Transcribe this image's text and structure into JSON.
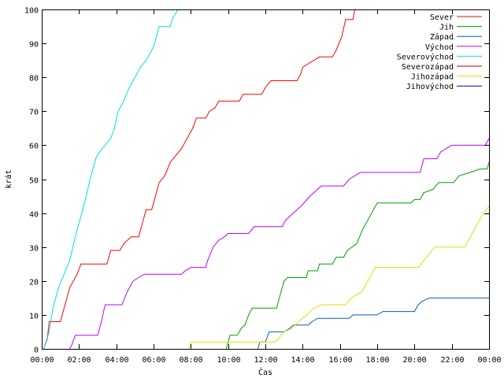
{
  "chart_data": {
    "type": "line",
    "xlabel": "Čas",
    "ylabel": "krát",
    "xlim": [
      0,
      24
    ],
    "ylim": [
      0,
      100
    ],
    "x_ticks": [
      {
        "value": 0,
        "label": "00:00"
      },
      {
        "value": 2,
        "label": "02:00"
      },
      {
        "value": 4,
        "label": "04:00"
      },
      {
        "value": 6,
        "label": "06:00"
      },
      {
        "value": 8,
        "label": "08:00"
      },
      {
        "value": 10,
        "label": "10:00"
      },
      {
        "value": 12,
        "label": "12:00"
      },
      {
        "value": 14,
        "label": "14:00"
      },
      {
        "value": 16,
        "label": "16:00"
      },
      {
        "value": 18,
        "label": "18:00"
      },
      {
        "value": 20,
        "label": "20:00"
      },
      {
        "value": 22,
        "label": "22:00"
      },
      {
        "value": 24,
        "label": "00:00"
      }
    ],
    "y_ticks": [
      {
        "value": 0,
        "label": "0"
      },
      {
        "value": 10,
        "label": "10"
      },
      {
        "value": 20,
        "label": "20"
      },
      {
        "value": 30,
        "label": "30"
      },
      {
        "value": 40,
        "label": "40"
      },
      {
        "value": 50,
        "label": "50"
      },
      {
        "value": 60,
        "label": "60"
      },
      {
        "value": 70,
        "label": "70"
      },
      {
        "value": 80,
        "label": "80"
      },
      {
        "value": 90,
        "label": "90"
      },
      {
        "value": 100,
        "label": "100"
      }
    ],
    "grid": false,
    "legend_position": "top-right",
    "series": [
      {
        "name": "Sever",
        "color": "#ff0000",
        "points": [
          [
            0.1,
            0
          ],
          [
            0.3,
            3
          ],
          [
            0.4,
            8
          ],
          [
            1.0,
            8
          ],
          [
            1.1,
            10
          ],
          [
            1.3,
            14
          ],
          [
            1.5,
            18
          ],
          [
            1.7,
            20
          ],
          [
            1.9,
            22
          ],
          [
            2.1,
            25
          ],
          [
            3.5,
            25
          ],
          [
            3.7,
            29
          ],
          [
            4.2,
            29
          ],
          [
            4.4,
            31
          ],
          [
            4.8,
            33
          ],
          [
            5.2,
            33
          ],
          [
            5.4,
            37
          ],
          [
            5.6,
            41
          ],
          [
            5.9,
            41
          ],
          [
            6.1,
            45
          ],
          [
            6.3,
            49
          ],
          [
            6.6,
            51
          ],
          [
            6.9,
            55
          ],
          [
            7.2,
            57
          ],
          [
            7.5,
            59
          ],
          [
            7.8,
            62
          ],
          [
            8.1,
            65
          ],
          [
            8.3,
            68
          ],
          [
            8.8,
            68
          ],
          [
            9.0,
            70
          ],
          [
            9.3,
            71
          ],
          [
            9.5,
            73
          ],
          [
            10.6,
            73
          ],
          [
            10.8,
            75
          ],
          [
            11.8,
            75
          ],
          [
            12.0,
            77
          ],
          [
            12.3,
            79
          ],
          [
            13.7,
            79
          ],
          [
            13.9,
            81
          ],
          [
            14.0,
            83
          ],
          [
            14.3,
            84
          ],
          [
            14.6,
            85
          ],
          [
            14.9,
            86
          ],
          [
            15.6,
            86
          ],
          [
            15.8,
            88
          ],
          [
            16.1,
            92
          ],
          [
            16.3,
            97
          ],
          [
            16.7,
            97
          ],
          [
            16.8,
            100
          ]
        ]
      },
      {
        "name": "Jih",
        "color": "#00a000",
        "points": [
          [
            9.9,
            0
          ],
          [
            10.0,
            2
          ],
          [
            10.1,
            4
          ],
          [
            10.5,
            4
          ],
          [
            10.7,
            6
          ],
          [
            10.9,
            7
          ],
          [
            11.1,
            10
          ],
          [
            11.3,
            12
          ],
          [
            12.6,
            12
          ],
          [
            12.8,
            16
          ],
          [
            13.0,
            20
          ],
          [
            13.2,
            21
          ],
          [
            14.2,
            21
          ],
          [
            14.3,
            23
          ],
          [
            14.8,
            23
          ],
          [
            14.9,
            25
          ],
          [
            15.6,
            25
          ],
          [
            15.8,
            27
          ],
          [
            16.2,
            27
          ],
          [
            16.4,
            29
          ],
          [
            16.9,
            31
          ],
          [
            17.2,
            35
          ],
          [
            17.5,
            38
          ],
          [
            17.8,
            41
          ],
          [
            18.0,
            43
          ],
          [
            19.8,
            43
          ],
          [
            20.0,
            44
          ],
          [
            20.3,
            44
          ],
          [
            20.5,
            46
          ],
          [
            21.0,
            47
          ],
          [
            21.3,
            49
          ],
          [
            22.1,
            49
          ],
          [
            22.4,
            51
          ],
          [
            23.0,
            52
          ],
          [
            23.5,
            53
          ],
          [
            23.9,
            53
          ],
          [
            24.0,
            55
          ]
        ]
      },
      {
        "name": "Západ",
        "color": "#0060c0",
        "points": [
          [
            11.6,
            0
          ],
          [
            11.7,
            2
          ],
          [
            12.0,
            2
          ],
          [
            12.2,
            5
          ],
          [
            13.0,
            5
          ],
          [
            13.3,
            6
          ],
          [
            13.5,
            7
          ],
          [
            14.3,
            7
          ],
          [
            14.5,
            8
          ],
          [
            14.8,
            9
          ],
          [
            16.5,
            9
          ],
          [
            16.7,
            10
          ],
          [
            18.0,
            10
          ],
          [
            18.3,
            11
          ],
          [
            20.0,
            11
          ],
          [
            20.2,
            13
          ],
          [
            20.4,
            14
          ],
          [
            20.8,
            15
          ],
          [
            24.0,
            15
          ]
        ]
      },
      {
        "name": "Východ",
        "color": "#c000ff",
        "points": [
          [
            1.5,
            0
          ],
          [
            1.6,
            1
          ],
          [
            1.8,
            4
          ],
          [
            3.0,
            4
          ],
          [
            3.2,
            8
          ],
          [
            3.4,
            13
          ],
          [
            4.3,
            13
          ],
          [
            4.6,
            17
          ],
          [
            4.9,
            20
          ],
          [
            5.2,
            21
          ],
          [
            5.5,
            22
          ],
          [
            7.5,
            22
          ],
          [
            7.7,
            23
          ],
          [
            8.0,
            24
          ],
          [
            8.8,
            24
          ],
          [
            8.9,
            26
          ],
          [
            9.2,
            30
          ],
          [
            9.5,
            32
          ],
          [
            9.8,
            33
          ],
          [
            10.0,
            34
          ],
          [
            11.1,
            34
          ],
          [
            11.4,
            36
          ],
          [
            12.9,
            36
          ],
          [
            13.1,
            38
          ],
          [
            13.5,
            40
          ],
          [
            13.9,
            42
          ],
          [
            14.4,
            45
          ],
          [
            14.8,
            47
          ],
          [
            15.0,
            48
          ],
          [
            16.2,
            48
          ],
          [
            16.5,
            50
          ],
          [
            17.1,
            52
          ],
          [
            20.3,
            52
          ],
          [
            20.5,
            56
          ],
          [
            21.2,
            56
          ],
          [
            21.4,
            58
          ],
          [
            22.0,
            60
          ],
          [
            23.8,
            60
          ],
          [
            24.0,
            62
          ]
        ]
      },
      {
        "name": "Severovýchod",
        "color": "#00e0e0",
        "points": [
          [
            0.1,
            0
          ],
          [
            0.4,
            5
          ],
          [
            0.6,
            12
          ],
          [
            0.9,
            18
          ],
          [
            1.2,
            22
          ],
          [
            1.5,
            26
          ],
          [
            1.8,
            33
          ],
          [
            2.0,
            37
          ],
          [
            2.3,
            43
          ],
          [
            2.6,
            50
          ],
          [
            2.9,
            56
          ],
          [
            3.1,
            58
          ],
          [
            3.4,
            60
          ],
          [
            3.7,
            62
          ],
          [
            3.9,
            65
          ],
          [
            4.1,
            70
          ],
          [
            4.4,
            73
          ],
          [
            4.7,
            77
          ],
          [
            5.0,
            80
          ],
          [
            5.3,
            83
          ],
          [
            5.6,
            85
          ],
          [
            5.8,
            87
          ],
          [
            6.0,
            89
          ],
          [
            6.3,
            95
          ],
          [
            6.9,
            95
          ],
          [
            7.0,
            97
          ],
          [
            7.3,
            100
          ],
          [
            7.7,
            100
          ]
        ]
      },
      {
        "name": "Severozápad",
        "color": "#c00000",
        "points": []
      },
      {
        "name": "Jihozápad",
        "color": "#e0e000",
        "points": [
          [
            7.9,
            0
          ],
          [
            8.0,
            2
          ],
          [
            12.0,
            2
          ],
          [
            12.5,
            2
          ],
          [
            12.7,
            3
          ],
          [
            13.0,
            5
          ],
          [
            13.4,
            6
          ],
          [
            13.8,
            8
          ],
          [
            14.2,
            10
          ],
          [
            14.6,
            12
          ],
          [
            15.0,
            13
          ],
          [
            16.3,
            13
          ],
          [
            16.6,
            15
          ],
          [
            17.2,
            17
          ],
          [
            17.6,
            21
          ],
          [
            17.9,
            24
          ],
          [
            20.2,
            24
          ],
          [
            20.5,
            26
          ],
          [
            20.8,
            28
          ],
          [
            21.1,
            30
          ],
          [
            22.7,
            30
          ],
          [
            23.0,
            33
          ],
          [
            23.4,
            37
          ],
          [
            23.7,
            40
          ],
          [
            24.0,
            42
          ]
        ]
      },
      {
        "name": "Jihovýchod",
        "color": "#0000c0",
        "points": []
      }
    ]
  }
}
